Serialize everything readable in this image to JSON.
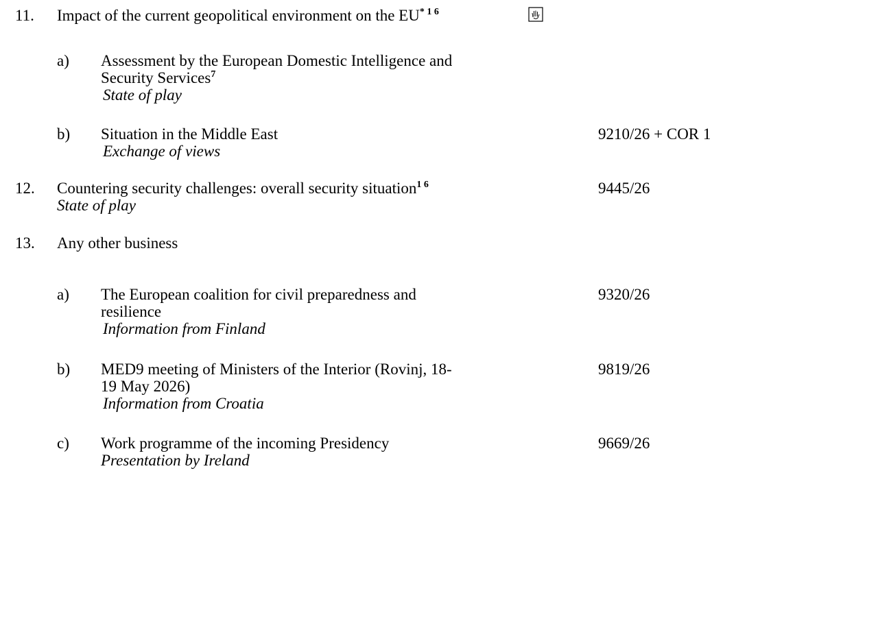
{
  "items": [
    {
      "number": "11.",
      "title_lines": [
        "Impact of the current geopolitical environment on the EU"
      ],
      "sup": "* 1 6",
      "subitems": [
        {
          "label": "a)",
          "title_lines": [
            "Assessment by the European Domestic Intelligence and",
            "Security Services"
          ],
          "sup": "7",
          "note": "State of play"
        },
        {
          "label": "b)",
          "title_lines": [
            "Situation in the Middle East"
          ],
          "note": "Exchange of views",
          "doc": "9210/26 + COR 1"
        }
      ]
    },
    {
      "number": "12.",
      "title_lines": [
        "Countering security challenges: overall security situation"
      ],
      "sup": "1 6",
      "note": "State of play",
      "doc": "9445/26"
    },
    {
      "number": "13.",
      "title_lines": [
        "Any other business"
      ],
      "subitems": [
        {
          "label": "a)",
          "title_lines": [
            "The European coalition for civil preparedness and",
            "resilience"
          ],
          "note": "Information from Finland",
          "doc": "9320/26"
        },
        {
          "label": "b)",
          "title_lines": [
            "MED9 meeting of Ministers of the Interior (Rovinj, 18-",
            "19 May 2026)"
          ],
          "note": "Information from Croatia",
          "doc": "9819/26"
        },
        {
          "label": "c)",
          "title_lines": [
            "Work programme of the incoming Presidency"
          ],
          "note": "Presentation by Ireland",
          "doc": "9669/26"
        }
      ]
    }
  ]
}
